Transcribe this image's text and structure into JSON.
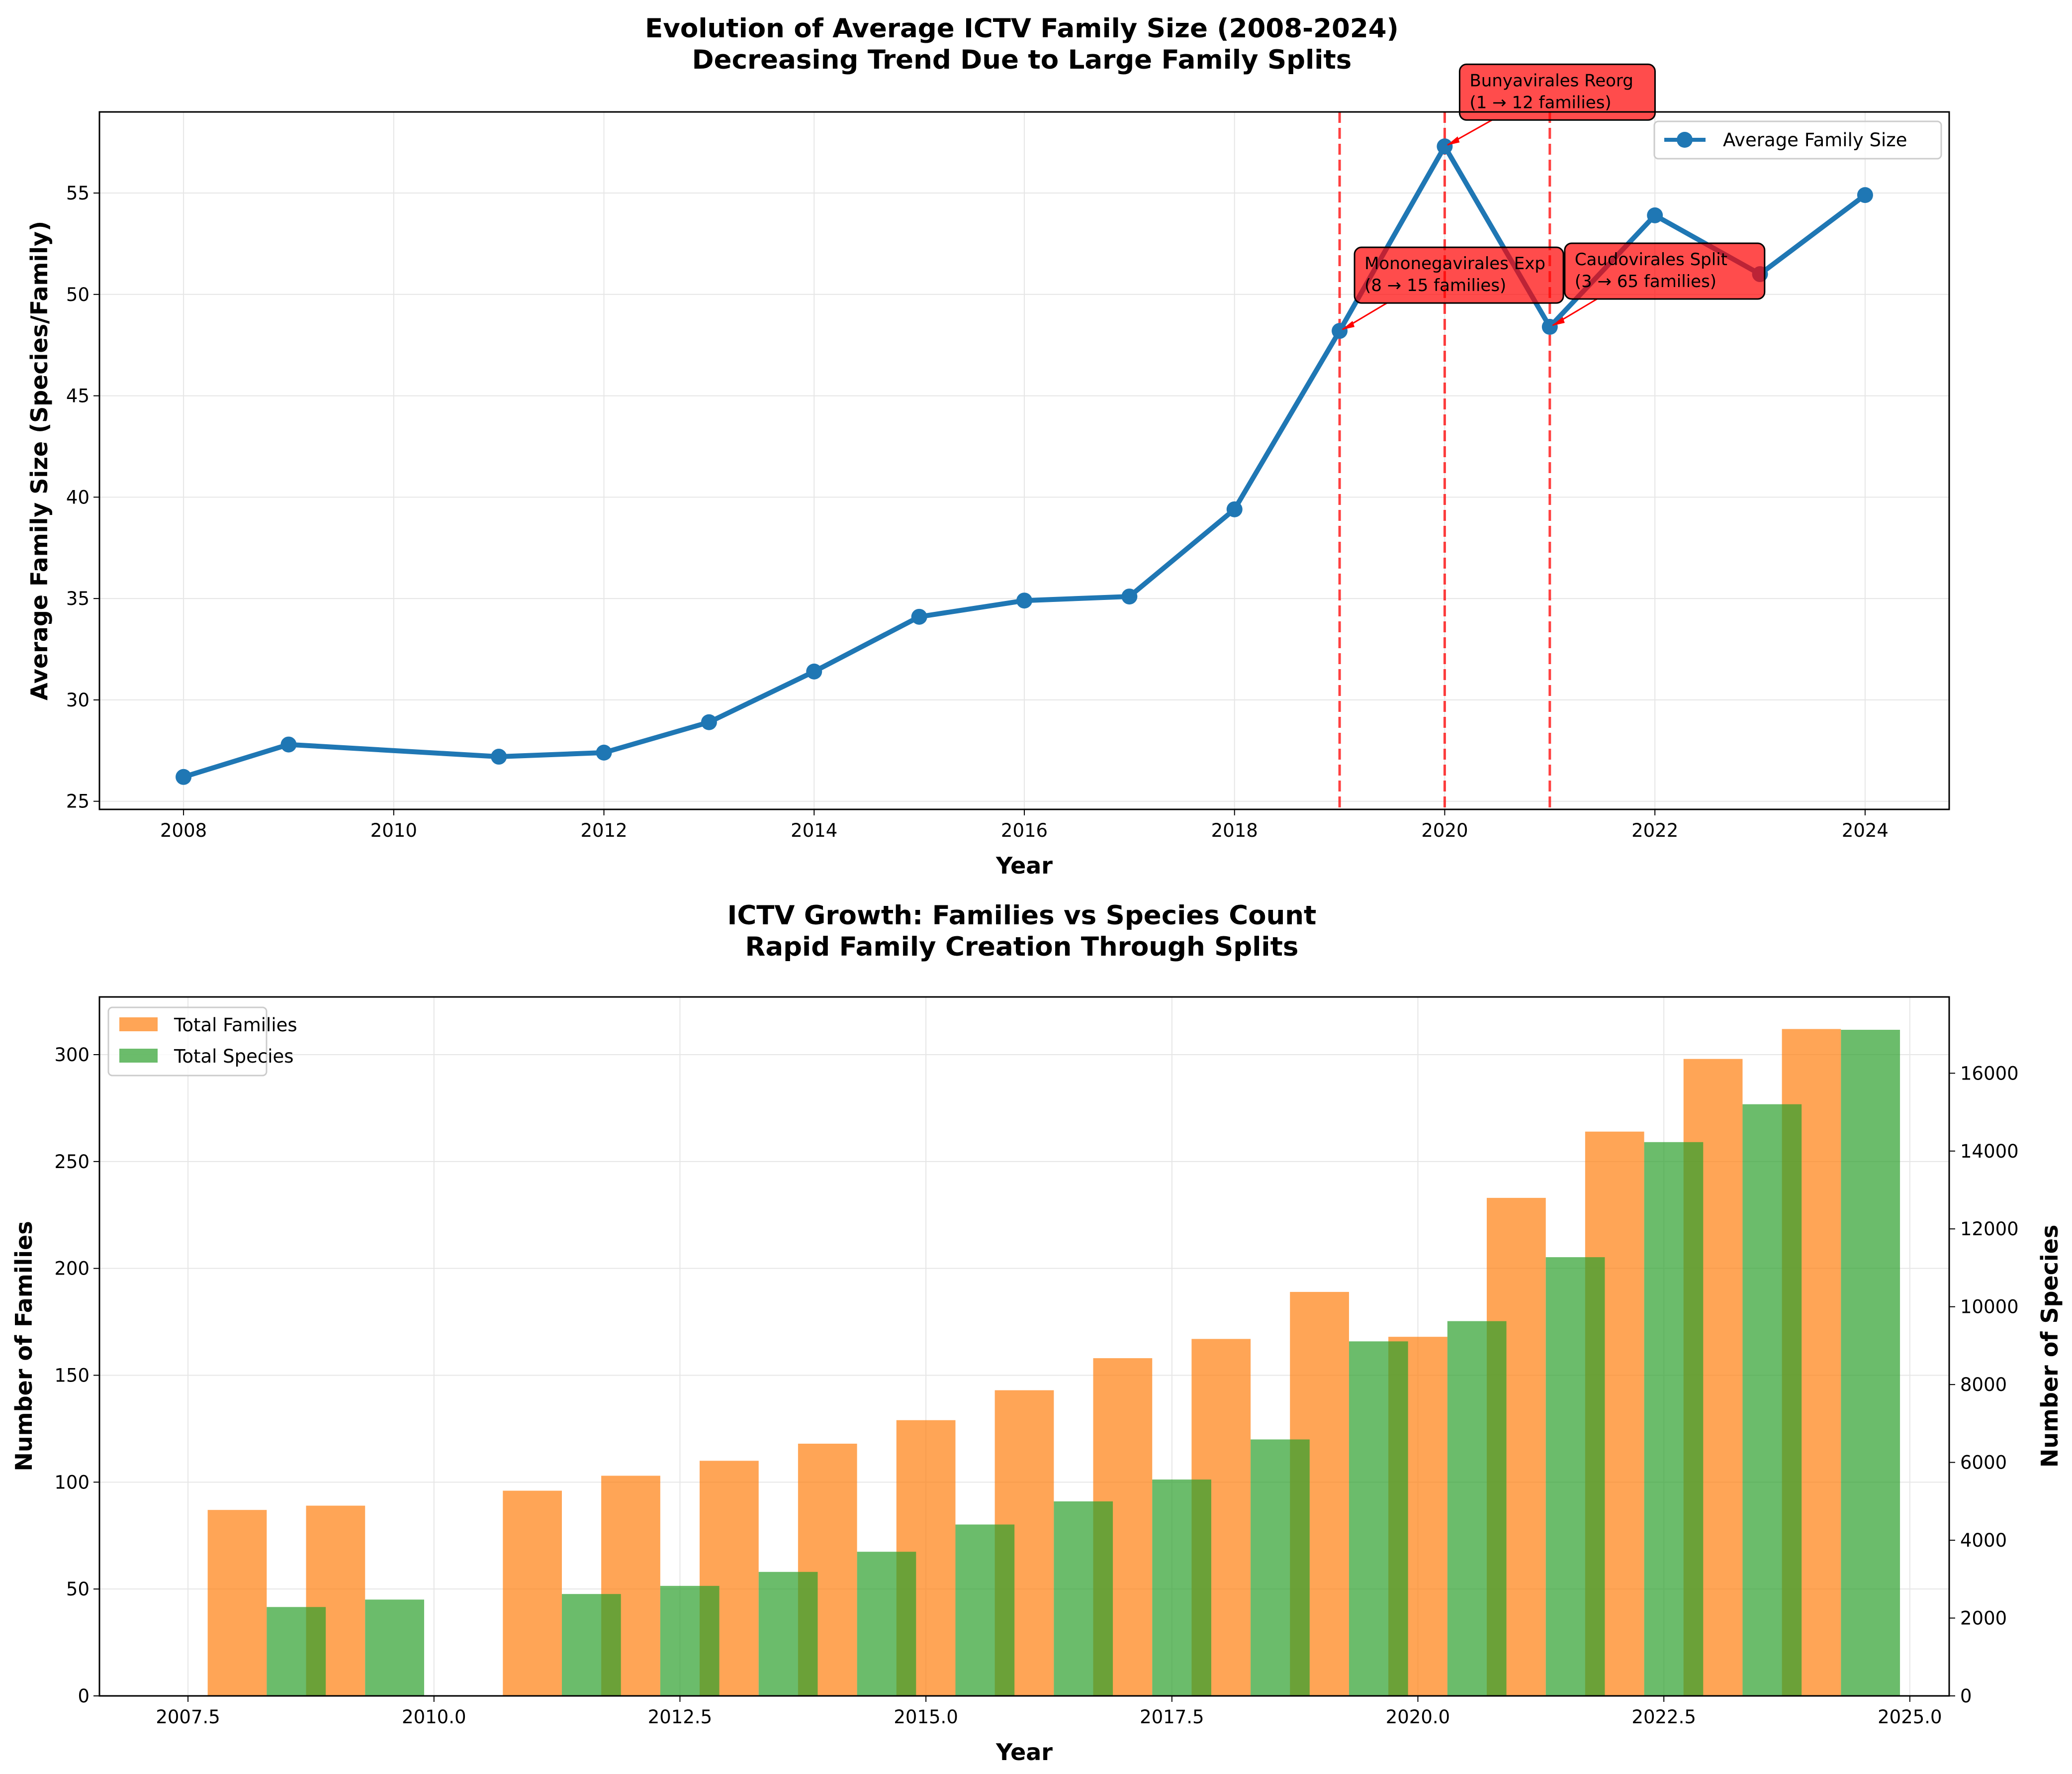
{
  "chart_data": [
    {
      "type": "line",
      "title_lines": [
        "Evolution of Average ICTV Family Size (2008-2024)",
        "Decreasing Trend Due to Large Family Splits"
      ],
      "xlabel": "Year",
      "ylabel": "Average Family Size (Species/Family)",
      "xlim": [
        2007.2,
        2024.8
      ],
      "ylim": [
        24.6,
        59.0
      ],
      "xticks": [
        2008,
        2010,
        2012,
        2014,
        2016,
        2018,
        2020,
        2022,
        2024
      ],
      "yticks": [
        25,
        30,
        35,
        40,
        45,
        50,
        55
      ],
      "grid": true,
      "legend_placement": "top-right",
      "series": [
        {
          "name": "Average Family Size",
          "color": "#1f77b4",
          "x": [
            2008,
            2009,
            2011,
            2012,
            2013,
            2014,
            2015,
            2016,
            2017,
            2018,
            2019,
            2020,
            2021,
            2022,
            2023,
            2024
          ],
          "y": [
            26.2,
            27.8,
            27.2,
            27.4,
            28.9,
            31.4,
            34.1,
            34.9,
            35.1,
            39.4,
            48.2,
            57.3,
            48.4,
            53.9,
            51.0,
            54.9
          ]
        }
      ],
      "reference_lines": [
        {
          "x": 2019,
          "color": "#ff0000",
          "style": "dashed"
        },
        {
          "x": 2020,
          "color": "#ff0000",
          "style": "dashed"
        },
        {
          "x": 2021,
          "color": "#ff0000",
          "style": "dashed"
        }
      ],
      "annotations": [
        {
          "x": 2019,
          "y": 48.2,
          "lines": [
            "Mononegavirales Exp",
            "(8 → 15 families)"
          ]
        },
        {
          "x": 2020,
          "y": 57.3,
          "lines": [
            "Bunyavirales Reorg",
            "(1 → 12 families)"
          ]
        },
        {
          "x": 2021,
          "y": 48.4,
          "lines": [
            "Caudovirales Split",
            "(3 → 65 families)"
          ]
        }
      ]
    },
    {
      "type": "bar",
      "title_lines": [
        "ICTV Growth: Families vs Species Count",
        "Rapid Family Creation Through Splits"
      ],
      "xlabel": "Year",
      "ylabel_left": "Number of Families",
      "ylabel_right": "Number of Species",
      "xlim": [
        2006.6,
        2025.4
      ],
      "ylim_left": [
        0,
        327
      ],
      "ylim_right": [
        0,
        17960
      ],
      "xticks": [
        "2007.5",
        "2010.0",
        "2012.5",
        "2015.0",
        "2017.5",
        "2020.0",
        "2022.5",
        "2025.0"
      ],
      "yticks_left": [
        0,
        50,
        100,
        150,
        200,
        250,
        300
      ],
      "yticks_right": [
        0,
        2000,
        4000,
        6000,
        8000,
        10000,
        12000,
        14000,
        16000
      ],
      "grid": true,
      "legend_placement": "top-left",
      "x": [
        2008,
        2009,
        2011,
        2012,
        2013,
        2014,
        2015,
        2016,
        2017,
        2018,
        2019,
        2020,
        2021,
        2022,
        2023,
        2024
      ],
      "series": [
        {
          "name": "Total Families",
          "axis": "left",
          "color": "#ff7f0e",
          "values": [
            87,
            89,
            96,
            103,
            110,
            118,
            129,
            143,
            158,
            167,
            189,
            168,
            233,
            264,
            298,
            312
          ]
        },
        {
          "name": "Total Species",
          "axis": "right",
          "color": "#2ca02c",
          "values": [
            2284,
            2475,
            2618,
            2827,
            3186,
            3704,
            4404,
            4998,
            5560,
            6590,
            9110,
            9630,
            11273,
            14230,
            15203,
            17116
          ]
        }
      ],
      "left_axis_color": "#ff7f0e",
      "right_axis_color": "#2ca02c"
    }
  ]
}
